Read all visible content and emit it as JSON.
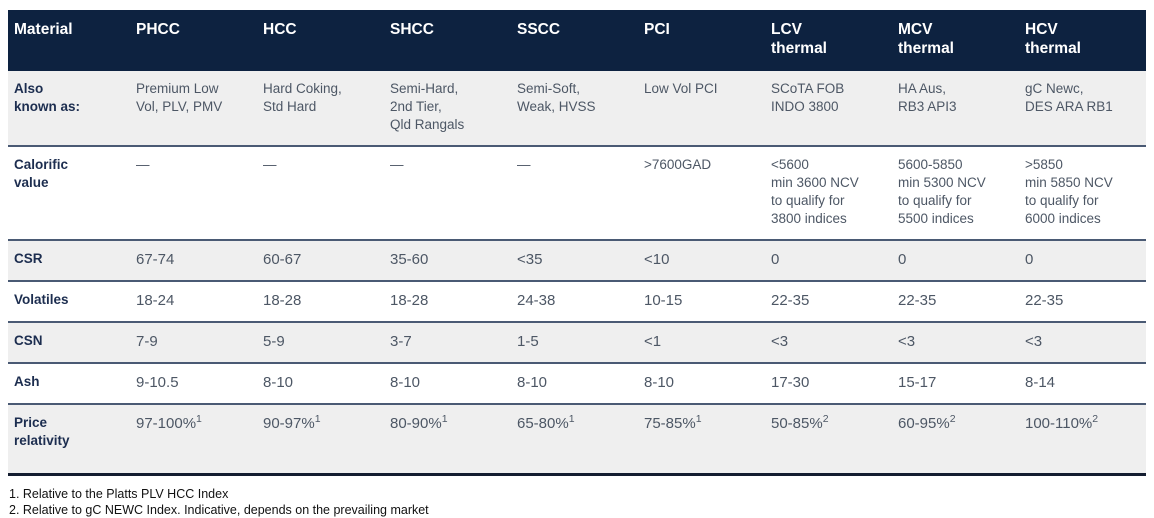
{
  "colors": {
    "header_bg": "#0d2240",
    "stripe_bg": "#efefef",
    "row_border": "#4a5a74",
    "bottom_border": "#141d30",
    "label_text": "#1c2d4f",
    "value_text": "#4d5765"
  },
  "table": {
    "header": {
      "label": "Material",
      "columns": [
        "PHCC",
        "HCC",
        "SHCC",
        "SSCC",
        "PCI",
        "LCV\nthermal",
        "MCV\nthermal",
        "HCV\nthermal"
      ]
    },
    "rows": [
      {
        "label": "Also\nknown as:",
        "cells": [
          "Premium Low\nVol, PLV, PMV",
          "Hard Coking,\nStd Hard",
          "Semi-Hard,\n2nd Tier,\nQld Rangals",
          "Semi-Soft,\nWeak, HVSS",
          "Low Vol PCI",
          "SCoTA FOB\nINDO 3800",
          "HA Aus,\nRB3 API3",
          "gC Newc,\nDES ARA RB1"
        ]
      },
      {
        "label": "Calorific\nvalue",
        "cells": [
          "—",
          "—",
          "—",
          "—",
          ">7600GAD",
          "<5600\nmin 3600 NCV\nto qualify for\n3800 indices",
          "5600-5850\nmin 5300 NCV\nto qualify for\n5500 indices",
          ">5850\nmin 5850 NCV\nto qualify for\n6000 indices"
        ]
      },
      {
        "label": "CSR",
        "cells": [
          "67-74",
          "60-67",
          "35-60",
          "<35",
          "<10",
          "0",
          "0",
          "0"
        ]
      },
      {
        "label": "Volatiles",
        "cells": [
          "18-24",
          "18-28",
          "18-28",
          "24-38",
          "10-15",
          "22-35",
          "22-35",
          "22-35"
        ]
      },
      {
        "label": "CSN",
        "cells": [
          "7-9",
          "5-9",
          "3-7",
          "1-5",
          "<1",
          "<3",
          "<3",
          "<3"
        ]
      },
      {
        "label": "Ash",
        "cells": [
          "9-10.5",
          "8-10",
          "8-10",
          "8-10",
          "8-10",
          "17-30",
          "15-17",
          "8-14"
        ]
      },
      {
        "label": "Price\nrelativity",
        "cells": [
          {
            "v": "97-100%",
            "s": "1"
          },
          {
            "v": "90-97%",
            "s": "1"
          },
          {
            "v": "80-90%",
            "s": "1"
          },
          {
            "v": "65-80%",
            "s": "1"
          },
          {
            "v": "75-85%",
            "s": "1"
          },
          {
            "v": "50-85%",
            "s": "2"
          },
          {
            "v": "60-95%",
            "s": "2"
          },
          {
            "v": "100-110%",
            "s": "2"
          }
        ]
      }
    ]
  },
  "footnotes": [
    "1. Relative to the Platts PLV HCC Index",
    "2. Relative to gC NEWC Index. Indicative, depends on the prevailing market"
  ]
}
